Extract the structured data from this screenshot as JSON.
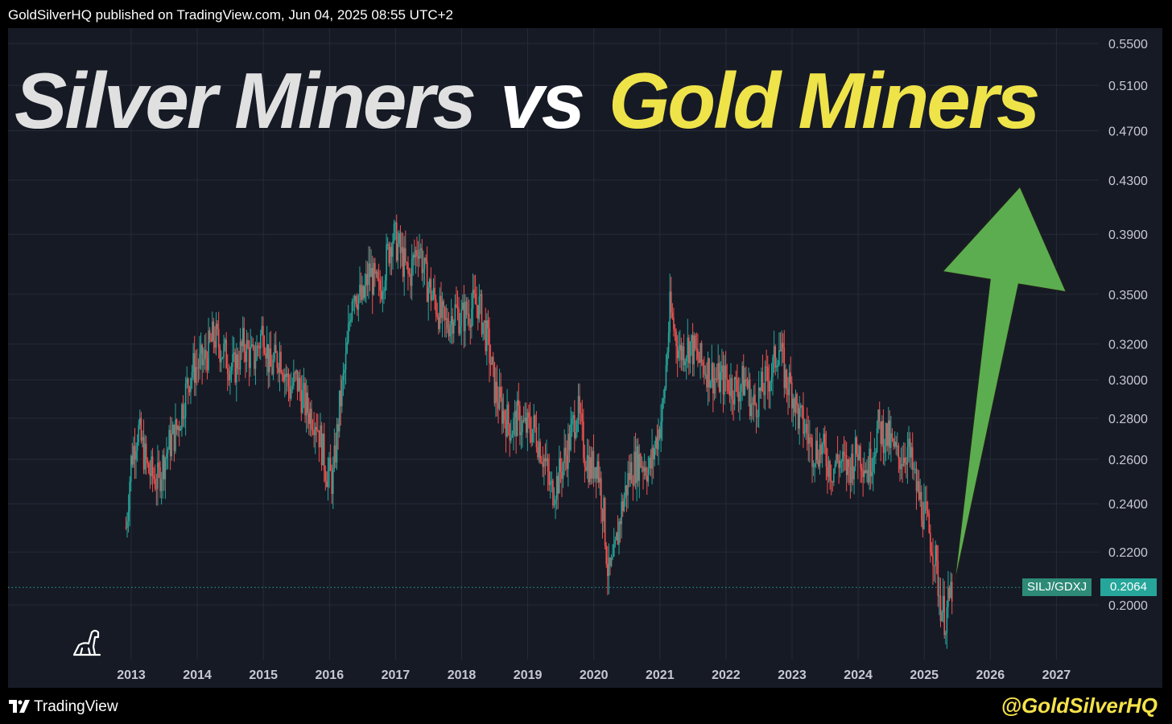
{
  "header": {
    "published": "GoldSilverHQ published on TradingView.com, Jun 04, 2025 08:55 UTC+2"
  },
  "headline": {
    "left": "Silver Miners",
    "middle": "vs",
    "right": "Gold Miners"
  },
  "footer": {
    "brand": "TradingView",
    "handle": "@GoldSilverHQ"
  },
  "price_tag": {
    "symbol": "SILJ/GDXJ",
    "value": "0.2064"
  },
  "colors": {
    "background": "#161a25",
    "up": "#26a69a",
    "down": "#ef5350",
    "arrow": "#5cad4f",
    "headline_silver": "#e0e0e0",
    "headline_gold": "#efe34a"
  },
  "icons": [
    "tradingview-logo-icon",
    "dino-icon",
    "up-arrow-icon"
  ],
  "chart_data": {
    "type": "candlestick",
    "symbol": "SILJ/GDXJ",
    "last": 0.2064,
    "x_ticks": [
      "2013",
      "2014",
      "2015",
      "2016",
      "2017",
      "2018",
      "2019",
      "2020",
      "2021",
      "2022",
      "2023",
      "2024",
      "2025",
      "2026",
      "2027"
    ],
    "y_ticks": [
      "0.2000",
      "0.2200",
      "0.2400",
      "0.2600",
      "0.2800",
      "0.3000",
      "0.3200",
      "0.3500",
      "0.3900",
      "0.4300",
      "0.4700",
      "0.5100",
      "0.5500"
    ],
    "scale": "log",
    "xlim": [
      2012.85,
      2027.25
    ],
    "ylim": [
      0.185,
      0.57
    ],
    "grid": true,
    "series": [
      {
        "values": [
          [
            2012.92,
            0.23
          ],
          [
            2013.0,
            0.26
          ],
          [
            2013.1,
            0.275
          ],
          [
            2013.25,
            0.255
          ],
          [
            2013.4,
            0.25
          ],
          [
            2013.55,
            0.265
          ],
          [
            2013.7,
            0.275
          ],
          [
            2013.9,
            0.305
          ],
          [
            2014.1,
            0.31
          ],
          [
            2014.25,
            0.325
          ],
          [
            2014.4,
            0.315
          ],
          [
            2014.55,
            0.305
          ],
          [
            2014.7,
            0.32
          ],
          [
            2014.85,
            0.31
          ],
          [
            2015.0,
            0.33
          ],
          [
            2015.1,
            0.305
          ],
          [
            2015.25,
            0.315
          ],
          [
            2015.4,
            0.295
          ],
          [
            2015.5,
            0.3
          ],
          [
            2015.65,
            0.285
          ],
          [
            2015.8,
            0.28
          ],
          [
            2015.95,
            0.255
          ],
          [
            2016.05,
            0.25
          ],
          [
            2016.15,
            0.285
          ],
          [
            2016.25,
            0.31
          ],
          [
            2016.35,
            0.355
          ],
          [
            2016.5,
            0.345
          ],
          [
            2016.6,
            0.365
          ],
          [
            2016.75,
            0.35
          ],
          [
            2016.85,
            0.37
          ],
          [
            2016.95,
            0.39
          ],
          [
            2017.05,
            0.38
          ],
          [
            2017.2,
            0.36
          ],
          [
            2017.35,
            0.385
          ],
          [
            2017.45,
            0.36
          ],
          [
            2017.6,
            0.345
          ],
          [
            2017.75,
            0.33
          ],
          [
            2017.9,
            0.34
          ],
          [
            2018.0,
            0.335
          ],
          [
            2018.1,
            0.34
          ],
          [
            2018.25,
            0.345
          ],
          [
            2018.4,
            0.32
          ],
          [
            2018.5,
            0.295
          ],
          [
            2018.6,
            0.285
          ],
          [
            2018.75,
            0.275
          ],
          [
            2018.85,
            0.28
          ],
          [
            2018.95,
            0.275
          ],
          [
            2019.1,
            0.275
          ],
          [
            2019.25,
            0.26
          ],
          [
            2019.35,
            0.245
          ],
          [
            2019.45,
            0.25
          ],
          [
            2019.6,
            0.265
          ],
          [
            2019.75,
            0.285
          ],
          [
            2019.85,
            0.265
          ],
          [
            2019.95,
            0.255
          ],
          [
            2020.05,
            0.26
          ],
          [
            2020.15,
            0.235
          ],
          [
            2020.22,
            0.21
          ],
          [
            2020.3,
            0.215
          ],
          [
            2020.4,
            0.235
          ],
          [
            2020.55,
            0.255
          ],
          [
            2020.7,
            0.26
          ],
          [
            2020.85,
            0.255
          ],
          [
            2020.95,
            0.27
          ],
          [
            2021.05,
            0.285
          ],
          [
            2021.15,
            0.34
          ],
          [
            2021.3,
            0.315
          ],
          [
            2021.45,
            0.32
          ],
          [
            2021.6,
            0.31
          ],
          [
            2021.75,
            0.305
          ],
          [
            2021.85,
            0.3
          ],
          [
            2022.0,
            0.3
          ],
          [
            2022.15,
            0.295
          ],
          [
            2022.3,
            0.3
          ],
          [
            2022.4,
            0.285
          ],
          [
            2022.55,
            0.295
          ],
          [
            2022.7,
            0.305
          ],
          [
            2022.8,
            0.32
          ],
          [
            2022.9,
            0.3
          ],
          [
            2023.0,
            0.295
          ],
          [
            2023.1,
            0.28
          ],
          [
            2023.2,
            0.275
          ],
          [
            2023.3,
            0.265
          ],
          [
            2023.45,
            0.265
          ],
          [
            2023.6,
            0.255
          ],
          [
            2023.7,
            0.26
          ],
          [
            2023.85,
            0.255
          ],
          [
            2024.0,
            0.265
          ],
          [
            2024.15,
            0.255
          ],
          [
            2024.3,
            0.275
          ],
          [
            2024.45,
            0.27
          ],
          [
            2024.6,
            0.26
          ],
          [
            2024.75,
            0.265
          ],
          [
            2024.9,
            0.245
          ],
          [
            2025.05,
            0.23
          ],
          [
            2025.15,
            0.22
          ],
          [
            2025.25,
            0.2
          ],
          [
            2025.32,
            0.195
          ],
          [
            2025.42,
            0.2064
          ]
        ]
      }
    ],
    "annotation": {
      "type": "arrow",
      "direction": "up",
      "from": [
        2025.45,
        0.2064
      ],
      "to": [
        2026.45,
        0.425
      ],
      "color": "#5cad4f"
    }
  }
}
